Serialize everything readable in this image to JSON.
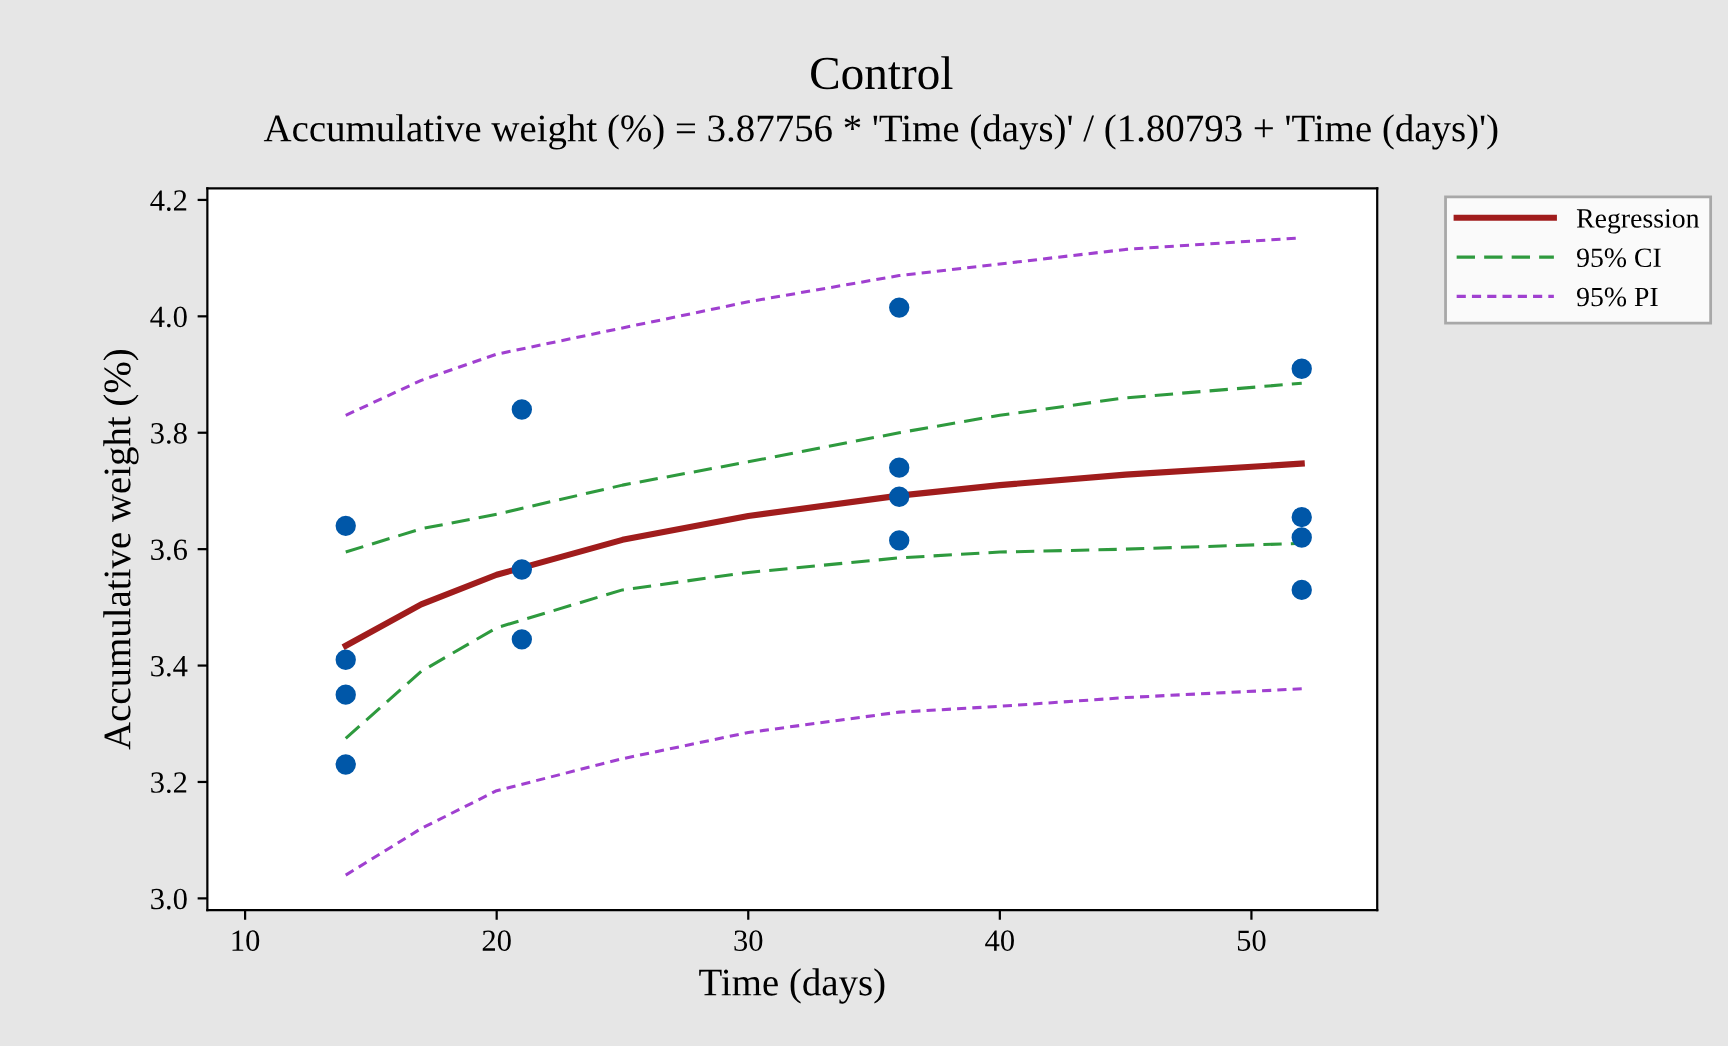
{
  "chart_data": {
    "type": "line",
    "title": "Control",
    "subtitle": "Accumulative weight (%) = 3.87756 * 'Time (days)' / (1.80793 + 'Time (days)')",
    "xlabel": "Time (days)",
    "ylabel": "Accumulative weight (%)",
    "xlim": [
      8.5,
      55
    ],
    "xticks": [
      10,
      20,
      30,
      40,
      50
    ],
    "ylim": [
      2.98,
      4.22
    ],
    "yticks": [
      {
        "value": 3.0,
        "label": "3.0"
      },
      3.2,
      3.4,
      3.6,
      3.8,
      {
        "value": 4.0,
        "label": "4.0"
      },
      4.2
    ],
    "grid": false,
    "legend": "top right",
    "series": [
      {
        "type": "scatter",
        "color": "#0057a8",
        "marker": "circle",
        "x": [
          14,
          14,
          14,
          14,
          21,
          21,
          21,
          36,
          36,
          36,
          36,
          52,
          52,
          52,
          52
        ],
        "values": [
          3.64,
          3.41,
          3.35,
          3.23,
          3.84,
          3.565,
          3.445,
          4.015,
          3.74,
          3.69,
          3.615,
          3.91,
          3.655,
          3.62,
          3.53
        ]
      },
      {
        "name": "Regression",
        "color": "#a01c1c",
        "line_style": "solid",
        "marker": "none",
        "x": [
          14,
          17,
          20,
          25,
          30,
          36,
          40,
          45,
          52
        ],
        "values": [
          3.434,
          3.505,
          3.556,
          3.616,
          3.657,
          3.692,
          3.71,
          3.728,
          3.747
        ]
      },
      {
        "name": "95% CI",
        "color": "#2e9a3e",
        "line_style": "dashed",
        "marker": "none",
        "x": [
          14,
          17,
          20,
          25,
          30,
          36,
          40,
          45,
          52
        ],
        "values": [
          3.595,
          3.635,
          3.66,
          3.71,
          3.75,
          3.8,
          3.83,
          3.86,
          3.885
        ]
      },
      {
        "color": "#2e9a3e",
        "line_style": "dashed",
        "marker": "none",
        "x": [
          14,
          17,
          20,
          25,
          30,
          36,
          40,
          45,
          52
        ],
        "values": [
          3.275,
          3.39,
          3.465,
          3.53,
          3.56,
          3.585,
          3.595,
          3.6,
          3.61
        ]
      },
      {
        "name": "95% PI",
        "color": "#a040d0",
        "line_style": "dotted",
        "marker": "none",
        "x": [
          14,
          17,
          20,
          25,
          30,
          36,
          40,
          45,
          52
        ],
        "values": [
          3.83,
          3.89,
          3.935,
          3.98,
          4.025,
          4.07,
          4.09,
          4.115,
          4.135
        ]
      },
      {
        "color": "#a040d0",
        "line_style": "dotted",
        "marker": "none",
        "x": [
          14,
          17,
          20,
          25,
          30,
          36,
          40,
          45,
          52
        ],
        "values": [
          3.04,
          3.12,
          3.185,
          3.24,
          3.285,
          3.32,
          3.33,
          3.345,
          3.36
        ]
      }
    ]
  }
}
